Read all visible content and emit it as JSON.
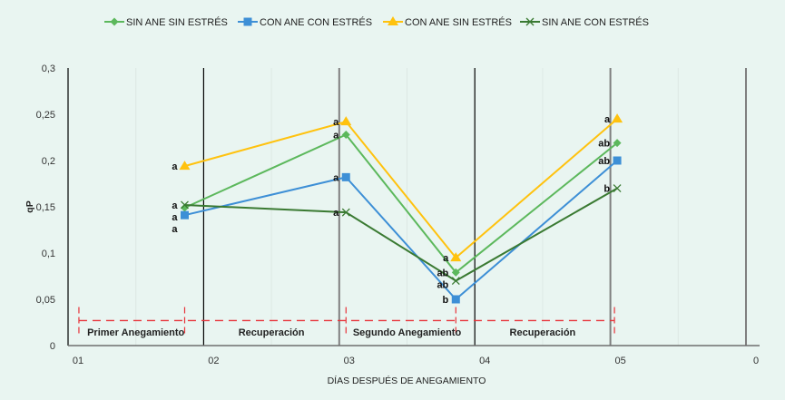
{
  "chart_data": {
    "type": "line",
    "title": "",
    "xlabel": "DÍAS DESPUÉS DE ANEGAMIENTO",
    "ylabel": "qP",
    "ylim": [
      0,
      0.3
    ],
    "y_ticks": [
      "0",
      "0,05",
      "0,1",
      "0,15",
      "0,2",
      "0,25",
      "0,3"
    ],
    "y_tick_values": [
      0,
      0.05,
      0.1,
      0.15,
      0.2,
      0.25,
      0.3
    ],
    "x_tick_labels": [
      "01",
      "02",
      "03",
      "04",
      "05",
      "0"
    ],
    "xlim": [
      0,
      5
    ],
    "grid": "faint vertical gridlines",
    "legend_position": "top",
    "x": [
      0.86,
      2.05,
      2.86,
      4.05
    ],
    "series": [
      {
        "name": "SIN ANE SIN ESTRÉS",
        "color": "#5cb85c",
        "marker": "diamond",
        "values": [
          0.149,
          0.228,
          0.079,
          0.219
        ],
        "labels": [
          "a",
          "a",
          "ab",
          "ab"
        ]
      },
      {
        "name": "CON ANE CON ESTRÉS",
        "color": "#3d8fd6",
        "marker": "square",
        "values": [
          0.141,
          0.182,
          0.05,
          0.2
        ],
        "labels": [
          "a",
          "a",
          "b",
          "ab"
        ]
      },
      {
        "name": "CON ANE SIN ESTRÉS",
        "color": "#ffc20e",
        "marker": "triangle",
        "values": [
          0.194,
          0.242,
          0.095,
          0.245
        ],
        "labels": [
          "a",
          "a",
          "a",
          "a"
        ]
      },
      {
        "name": "SIN ANE CON ESTRÉS",
        "color": "#3a7a32",
        "marker": "x",
        "values": [
          0.152,
          0.144,
          0.07,
          0.17
        ],
        "labels": [
          "a",
          "a",
          "ab",
          "b"
        ]
      }
    ],
    "phases": [
      {
        "label": "Primer Anegamiento",
        "from": 0,
        "to": 1
      },
      {
        "label": "Recuperación",
        "from": 1,
        "to": 2
      },
      {
        "label": "Segundo Anegamiento",
        "from": 2,
        "to": 3
      },
      {
        "label": "Recuperación",
        "from": 3,
        "to": 4
      }
    ],
    "phase_dividers": [
      {
        "x": 1,
        "color": "#000000"
      },
      {
        "x": 2,
        "color": "#7f7f7f"
      },
      {
        "x": 3,
        "color": "#000000"
      },
      {
        "x": 4,
        "color": "#7f7f7f"
      },
      {
        "x": 5,
        "color": "#7f7f7f"
      }
    ],
    "stress_markers": {
      "color": "#e8333a",
      "x": [
        0.08,
        0.86,
        2.05,
        2.86,
        4.03
      ],
      "level": 0.027
    }
  }
}
